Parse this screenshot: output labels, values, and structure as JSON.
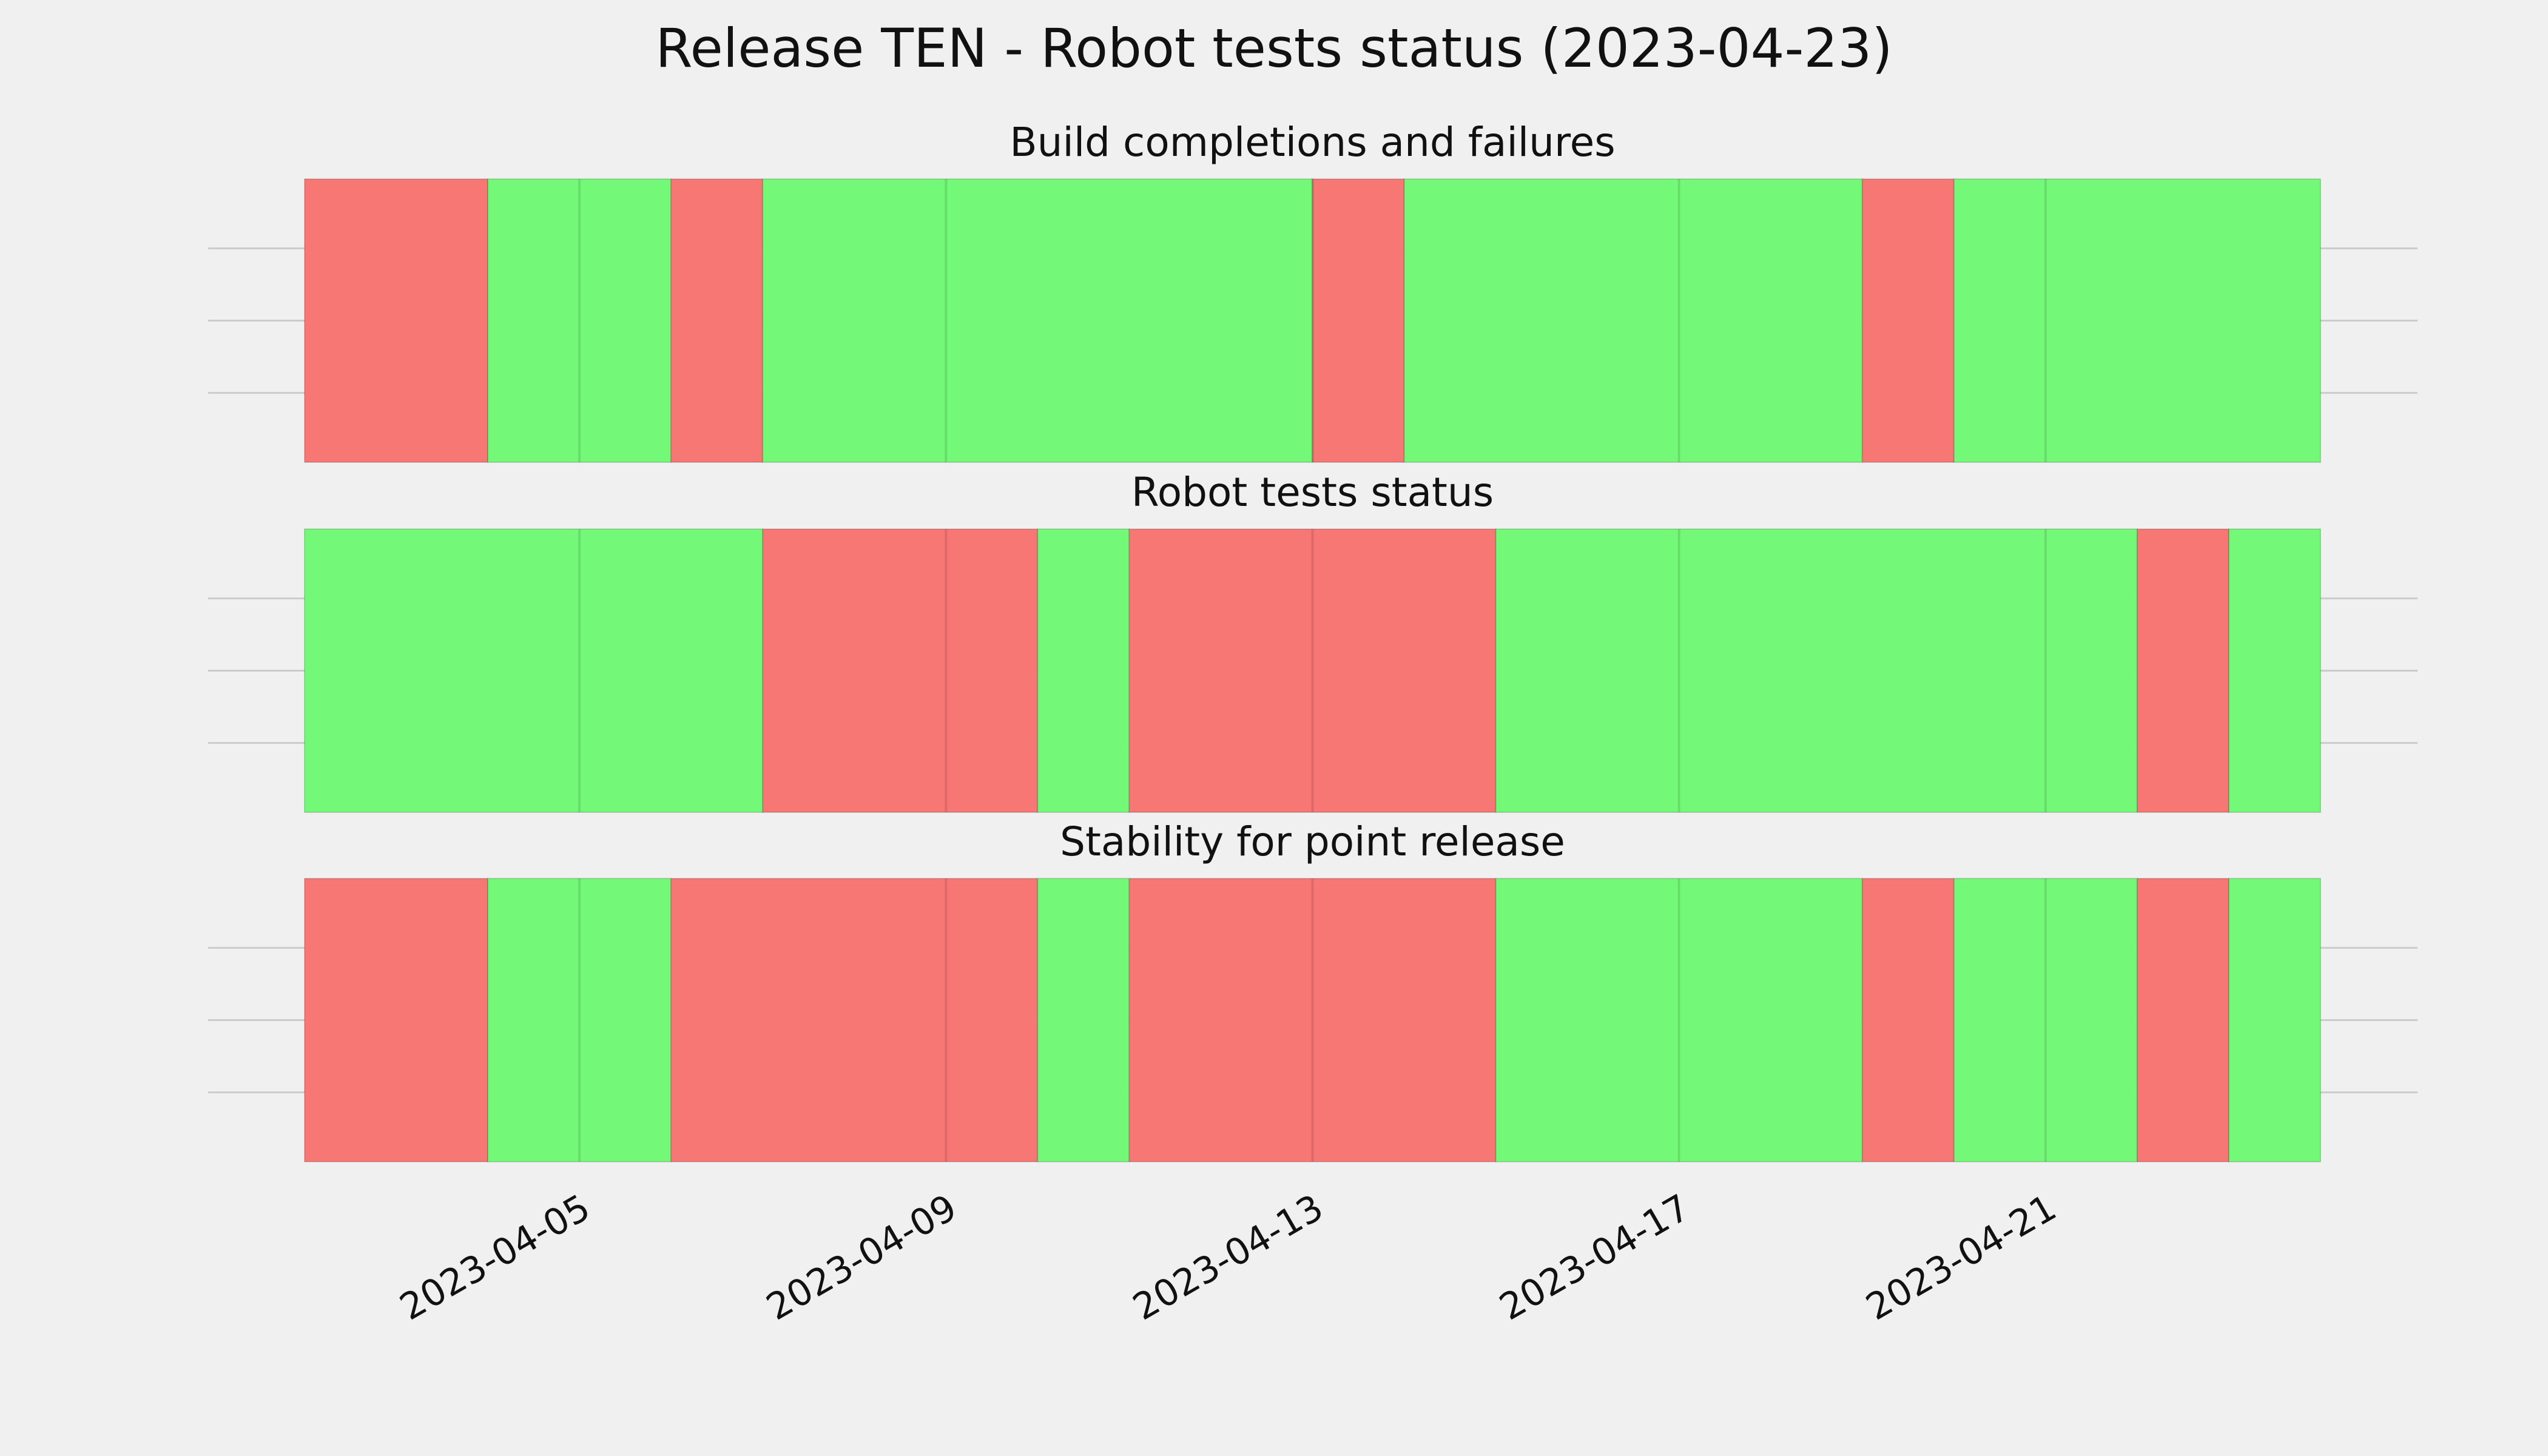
{
  "title": "Release TEN - Robot tests status (2023-04-23)",
  "colors": {
    "background": "#f0f0f0",
    "pass": "#74f877",
    "fail": "#f77775",
    "grid": "#cbcbcb"
  },
  "chart_data": {
    "type": "timeline",
    "x_axis": {
      "type": "date",
      "range": [
        "2023-04-02",
        "2023-04-24"
      ],
      "ticks": [
        "2023-04-05",
        "2023-04-09",
        "2023-04-13",
        "2023-04-17",
        "2023-04-21"
      ]
    },
    "y_axis": {
      "tick_labels": false
    },
    "grid": true,
    "panels": [
      {
        "title": "Build completions and failures",
        "segments": [
          {
            "start": "2023-04-02",
            "end": "2023-04-04",
            "status": "fail"
          },
          {
            "start": "2023-04-04",
            "end": "2023-04-06",
            "status": "pass"
          },
          {
            "start": "2023-04-06",
            "end": "2023-04-07",
            "status": "fail"
          },
          {
            "start": "2023-04-07",
            "end": "2023-04-13",
            "status": "pass"
          },
          {
            "start": "2023-04-13",
            "end": "2023-04-14",
            "status": "fail"
          },
          {
            "start": "2023-04-14",
            "end": "2023-04-19",
            "status": "pass"
          },
          {
            "start": "2023-04-19",
            "end": "2023-04-20",
            "status": "fail"
          },
          {
            "start": "2023-04-20",
            "end": "2023-04-24",
            "status": "pass"
          }
        ]
      },
      {
        "title": "Robot tests status",
        "segments": [
          {
            "start": "2023-04-02",
            "end": "2023-04-07",
            "status": "pass"
          },
          {
            "start": "2023-04-07",
            "end": "2023-04-10",
            "status": "fail"
          },
          {
            "start": "2023-04-10",
            "end": "2023-04-11",
            "status": "pass"
          },
          {
            "start": "2023-04-11",
            "end": "2023-04-15",
            "status": "fail"
          },
          {
            "start": "2023-04-15",
            "end": "2023-04-22",
            "status": "pass"
          },
          {
            "start": "2023-04-22",
            "end": "2023-04-23",
            "status": "fail"
          },
          {
            "start": "2023-04-23",
            "end": "2023-04-24",
            "status": "pass"
          }
        ]
      },
      {
        "title": "Stability for point release",
        "segments": [
          {
            "start": "2023-04-02",
            "end": "2023-04-04",
            "status": "fail"
          },
          {
            "start": "2023-04-04",
            "end": "2023-04-06",
            "status": "pass"
          },
          {
            "start": "2023-04-06",
            "end": "2023-04-10",
            "status": "fail"
          },
          {
            "start": "2023-04-10",
            "end": "2023-04-11",
            "status": "pass"
          },
          {
            "start": "2023-04-11",
            "end": "2023-04-15",
            "status": "fail"
          },
          {
            "start": "2023-04-15",
            "end": "2023-04-19",
            "status": "pass"
          },
          {
            "start": "2023-04-19",
            "end": "2023-04-20",
            "status": "fail"
          },
          {
            "start": "2023-04-20",
            "end": "2023-04-22",
            "status": "pass"
          },
          {
            "start": "2023-04-22",
            "end": "2023-04-23",
            "status": "fail"
          },
          {
            "start": "2023-04-23",
            "end": "2023-04-24",
            "status": "pass"
          }
        ]
      }
    ]
  }
}
